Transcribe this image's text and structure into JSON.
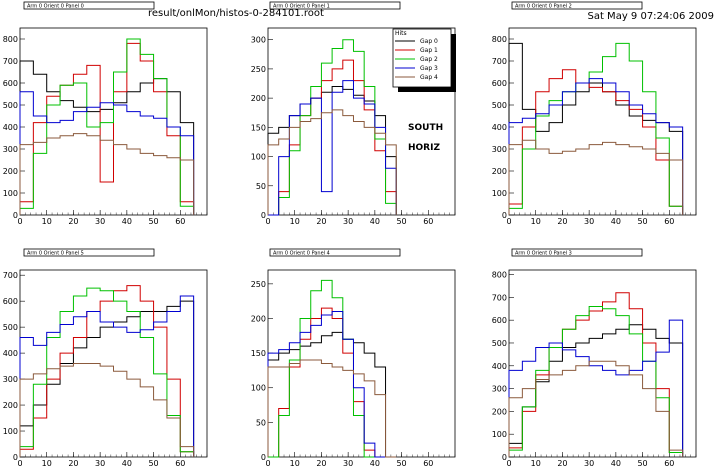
{
  "header": {
    "file_path": "result/onlMon/histos-0-284101.root",
    "timestamp": "Sat May  9 07:24:06 2009"
  },
  "annotations": {
    "line1": "SOUTH",
    "line2": "HORIZ"
  },
  "colors": {
    "Gap 0": "#000000",
    "Gap 1": "#d00000",
    "Gap 2": "#00c000",
    "Gap 3": "#0000d0",
    "Gap 4": "#8b5a3c"
  },
  "chart_data": [
    {
      "type": "line",
      "title": "Arm 0 Orient 0 Panel 0",
      "xlim": [
        0,
        70
      ],
      "ylim": [
        0,
        850
      ],
      "xticks": [
        0,
        10,
        20,
        30,
        40,
        50,
        60
      ],
      "yticks": [
        0,
        100,
        200,
        300,
        400,
        500,
        600,
        700,
        800
      ],
      "series": [
        {
          "name": "Gap 0",
          "x": [
            0,
            5,
            10,
            15,
            20,
            25,
            30,
            35,
            40,
            45,
            50,
            55,
            60
          ],
          "values": [
            700,
            640,
            560,
            520,
            490,
            470,
            480,
            510,
            560,
            600,
            620,
            560,
            420
          ]
        },
        {
          "name": "Gap 1",
          "x": [
            0,
            5,
            10,
            15,
            20,
            25,
            30,
            35,
            40,
            45,
            50,
            55,
            60
          ],
          "values": [
            60,
            420,
            540,
            590,
            640,
            680,
            150,
            560,
            780,
            700,
            560,
            360,
            60
          ]
        },
        {
          "name": "Gap 2",
          "x": [
            0,
            5,
            10,
            15,
            20,
            25,
            30,
            35,
            40,
            45,
            50,
            55,
            60
          ],
          "values": [
            30,
            280,
            500,
            590,
            600,
            400,
            420,
            650,
            800,
            730,
            620,
            400,
            40
          ]
        },
        {
          "name": "Gap 3",
          "x": [
            0,
            5,
            10,
            15,
            20,
            25,
            30,
            35,
            40,
            45,
            50,
            55,
            60
          ],
          "values": [
            560,
            450,
            420,
            430,
            470,
            490,
            510,
            500,
            470,
            450,
            440,
            400,
            360
          ]
        },
        {
          "name": "Gap 4",
          "x": [
            0,
            5,
            10,
            15,
            20,
            25,
            30,
            35,
            40,
            45,
            50,
            55,
            60
          ],
          "values": [
            320,
            330,
            350,
            360,
            370,
            360,
            340,
            320,
            300,
            280,
            270,
            260,
            250
          ]
        }
      ]
    },
    {
      "type": "line",
      "title": "Arm 0 Orient 0 Panel 1",
      "xlim": [
        0,
        70
      ],
      "ylim": [
        0,
        320
      ],
      "xticks": [
        0,
        10,
        20,
        30,
        40,
        50,
        60
      ],
      "yticks": [
        0,
        50,
        100,
        150,
        200,
        250,
        300
      ],
      "series": [
        {
          "name": "Gap 0",
          "x": [
            0,
            4,
            8,
            12,
            16,
            20,
            24,
            28,
            32,
            36,
            40,
            44
          ],
          "values": [
            140,
            150,
            170,
            190,
            200,
            210,
            220,
            215,
            205,
            195,
            170,
            100
          ]
        },
        {
          "name": "Gap 1",
          "x": [
            0,
            4,
            8,
            12,
            16,
            20,
            24,
            28,
            32,
            36,
            40,
            44
          ],
          "values": [
            0,
            40,
            120,
            170,
            200,
            230,
            250,
            265,
            230,
            180,
            110,
            40
          ]
        },
        {
          "name": "Gap 2",
          "x": [
            0,
            4,
            8,
            12,
            16,
            20,
            24,
            28,
            32,
            36,
            40,
            44
          ],
          "values": [
            0,
            30,
            110,
            170,
            220,
            260,
            285,
            300,
            280,
            220,
            130,
            20
          ]
        },
        {
          "name": "Gap 3",
          "x": [
            0,
            4,
            8,
            12,
            16,
            20,
            24,
            28,
            32,
            36,
            40,
            44
          ],
          "values": [
            0,
            100,
            170,
            190,
            200,
            40,
            210,
            230,
            200,
            190,
            150,
            80
          ]
        },
        {
          "name": "Gap 4",
          "x": [
            0,
            4,
            8,
            12,
            16,
            20,
            24,
            28,
            32,
            36,
            40,
            44
          ],
          "values": [
            120,
            130,
            150,
            160,
            165,
            175,
            180,
            170,
            160,
            150,
            140,
            120
          ]
        }
      ]
    },
    {
      "type": "line",
      "title": "Arm 0 Orient 0 Panel 2",
      "xlim": [
        0,
        70
      ],
      "ylim": [
        0,
        850
      ],
      "xticks": [
        0,
        10,
        20,
        30,
        40,
        50,
        60
      ],
      "yticks": [
        0,
        100,
        200,
        300,
        400,
        500,
        600,
        700,
        800
      ],
      "series": [
        {
          "name": "Gap 0",
          "x": [
            0,
            5,
            10,
            15,
            20,
            25,
            30,
            35,
            40,
            45,
            50,
            55,
            60
          ],
          "values": [
            780,
            480,
            380,
            420,
            500,
            560,
            600,
            560,
            500,
            450,
            430,
            420,
            380
          ]
        },
        {
          "name": "Gap 1",
          "x": [
            0,
            5,
            10,
            15,
            20,
            25,
            30,
            35,
            40,
            45,
            50,
            55,
            60
          ],
          "values": [
            50,
            400,
            560,
            620,
            660,
            600,
            580,
            560,
            520,
            480,
            400,
            250,
            40
          ]
        },
        {
          "name": "Gap 2",
          "x": [
            0,
            5,
            10,
            15,
            20,
            25,
            30,
            35,
            40,
            45,
            50,
            55,
            60
          ],
          "values": [
            30,
            300,
            450,
            520,
            560,
            600,
            650,
            720,
            780,
            700,
            560,
            350,
            40
          ]
        },
        {
          "name": "Gap 3",
          "x": [
            0,
            5,
            10,
            15,
            20,
            25,
            30,
            35,
            40,
            45,
            50,
            55,
            60
          ],
          "values": [
            420,
            440,
            460,
            500,
            560,
            600,
            620,
            600,
            560,
            500,
            460,
            420,
            400
          ]
        },
        {
          "name": "Gap 4",
          "x": [
            0,
            5,
            10,
            15,
            20,
            25,
            30,
            35,
            40,
            45,
            50,
            55,
            60
          ],
          "values": [
            320,
            340,
            300,
            280,
            290,
            300,
            320,
            330,
            320,
            310,
            300,
            280,
            250
          ]
        }
      ]
    },
    {
      "type": "line",
      "title": "Arm 0 Orient 0 Panel 5",
      "xlim": [
        0,
        70
      ],
      "ylim": [
        0,
        720
      ],
      "xticks": [
        0,
        10,
        20,
        30,
        40,
        50,
        60
      ],
      "yticks": [
        0,
        100,
        200,
        300,
        400,
        500,
        600,
        700
      ],
      "series": [
        {
          "name": "Gap 0",
          "x": [
            0,
            5,
            10,
            15,
            20,
            25,
            30,
            35,
            40,
            45,
            50,
            55,
            60
          ],
          "values": [
            120,
            200,
            280,
            360,
            420,
            460,
            500,
            520,
            540,
            560,
            560,
            580,
            600
          ]
        },
        {
          "name": "Gap 1",
          "x": [
            0,
            5,
            10,
            15,
            20,
            25,
            30,
            35,
            40,
            45,
            50,
            55,
            60
          ],
          "values": [
            30,
            150,
            300,
            400,
            460,
            560,
            600,
            640,
            660,
            600,
            500,
            300,
            20
          ]
        },
        {
          "name": "Gap 2",
          "x": [
            0,
            5,
            10,
            15,
            20,
            25,
            30,
            35,
            40,
            45,
            50,
            55,
            60
          ],
          "values": [
            40,
            280,
            460,
            560,
            620,
            650,
            640,
            600,
            560,
            460,
            320,
            160,
            20
          ]
        },
        {
          "name": "Gap 3",
          "x": [
            0,
            5,
            10,
            15,
            20,
            25,
            30,
            35,
            40,
            45,
            50,
            55,
            60
          ],
          "values": [
            460,
            430,
            480,
            510,
            540,
            560,
            520,
            500,
            480,
            490,
            520,
            560,
            620
          ]
        },
        {
          "name": "Gap 4",
          "x": [
            0,
            5,
            10,
            15,
            20,
            25,
            30,
            35,
            40,
            45,
            50,
            55,
            60
          ],
          "values": [
            300,
            320,
            340,
            350,
            360,
            360,
            350,
            330,
            300,
            270,
            220,
            150,
            40
          ]
        }
      ]
    },
    {
      "type": "line",
      "title": "Arm 0 Orient 0 Panel 4",
      "xlim": [
        0,
        70
      ],
      "ylim": [
        0,
        270
      ],
      "xticks": [
        0,
        10,
        20,
        30,
        40,
        50,
        60
      ],
      "yticks": [
        0,
        50,
        100,
        150,
        200,
        250
      ],
      "series": [
        {
          "name": "Gap 0",
          "x": [
            0,
            4,
            8,
            12,
            16,
            20,
            24,
            28,
            32,
            36,
            40,
            44
          ],
          "values": [
            140,
            150,
            155,
            160,
            165,
            175,
            180,
            170,
            165,
            150,
            130,
            0
          ]
        },
        {
          "name": "Gap 1",
          "x": [
            0,
            4,
            8,
            12,
            16,
            20,
            24,
            28,
            32,
            36,
            40,
            44
          ],
          "values": [
            0,
            70,
            130,
            170,
            200,
            215,
            200,
            150,
            80,
            10,
            0,
            0
          ]
        },
        {
          "name": "Gap 2",
          "x": [
            0,
            4,
            8,
            12,
            16,
            20,
            24,
            28,
            32,
            36,
            40,
            44
          ],
          "values": [
            0,
            60,
            140,
            200,
            240,
            255,
            230,
            170,
            60,
            0,
            0,
            0
          ]
        },
        {
          "name": "Gap 3",
          "x": [
            0,
            4,
            8,
            12,
            16,
            20,
            24,
            28,
            32,
            36,
            40,
            44
          ],
          "values": [
            150,
            155,
            165,
            180,
            190,
            205,
            210,
            170,
            100,
            20,
            0,
            0
          ]
        },
        {
          "name": "Gap 4",
          "x": [
            0,
            4,
            8,
            12,
            16,
            20,
            24,
            28,
            32,
            36,
            40,
            44
          ],
          "values": [
            130,
            130,
            135,
            140,
            140,
            135,
            130,
            125,
            120,
            110,
            90,
            0
          ]
        }
      ]
    },
    {
      "type": "line",
      "title": "Arm 0 Orient 0 Panel 3",
      "xlim": [
        0,
        70
      ],
      "ylim": [
        0,
        820
      ],
      "xticks": [
        0,
        10,
        20,
        30,
        40,
        50,
        60
      ],
      "yticks": [
        0,
        100,
        200,
        300,
        400,
        500,
        600,
        700,
        800
      ],
      "series": [
        {
          "name": "Gap 0",
          "x": [
            0,
            5,
            10,
            15,
            20,
            25,
            30,
            35,
            40,
            45,
            50,
            55,
            60
          ],
          "values": [
            60,
            220,
            330,
            420,
            480,
            500,
            520,
            540,
            560,
            580,
            560,
            520,
            500
          ]
        },
        {
          "name": "Gap 1",
          "x": [
            0,
            5,
            10,
            15,
            20,
            25,
            30,
            35,
            40,
            45,
            50,
            55,
            60
          ],
          "values": [
            40,
            200,
            360,
            480,
            560,
            600,
            640,
            680,
            720,
            650,
            500,
            300,
            20
          ]
        },
        {
          "name": "Gap 2",
          "x": [
            0,
            5,
            10,
            15,
            20,
            25,
            30,
            35,
            40,
            45,
            50,
            55,
            60
          ],
          "values": [
            30,
            220,
            380,
            480,
            560,
            620,
            660,
            650,
            620,
            540,
            420,
            260,
            20
          ]
        },
        {
          "name": "Gap 3",
          "x": [
            0,
            5,
            10,
            15,
            20,
            25,
            30,
            35,
            40,
            45,
            50,
            55,
            60
          ],
          "values": [
            380,
            420,
            480,
            500,
            470,
            440,
            400,
            380,
            360,
            380,
            420,
            460,
            600
          ]
        },
        {
          "name": "Gap 4",
          "x": [
            0,
            5,
            10,
            15,
            20,
            25,
            30,
            35,
            40,
            45,
            50,
            55,
            60
          ],
          "values": [
            260,
            300,
            340,
            360,
            380,
            400,
            420,
            420,
            400,
            360,
            300,
            200,
            30
          ]
        }
      ]
    }
  ],
  "legend": {
    "title": "Hits",
    "entries": [
      "Gap 0",
      "Gap 1",
      "Gap 2",
      "Gap 3",
      "Gap 4"
    ]
  }
}
